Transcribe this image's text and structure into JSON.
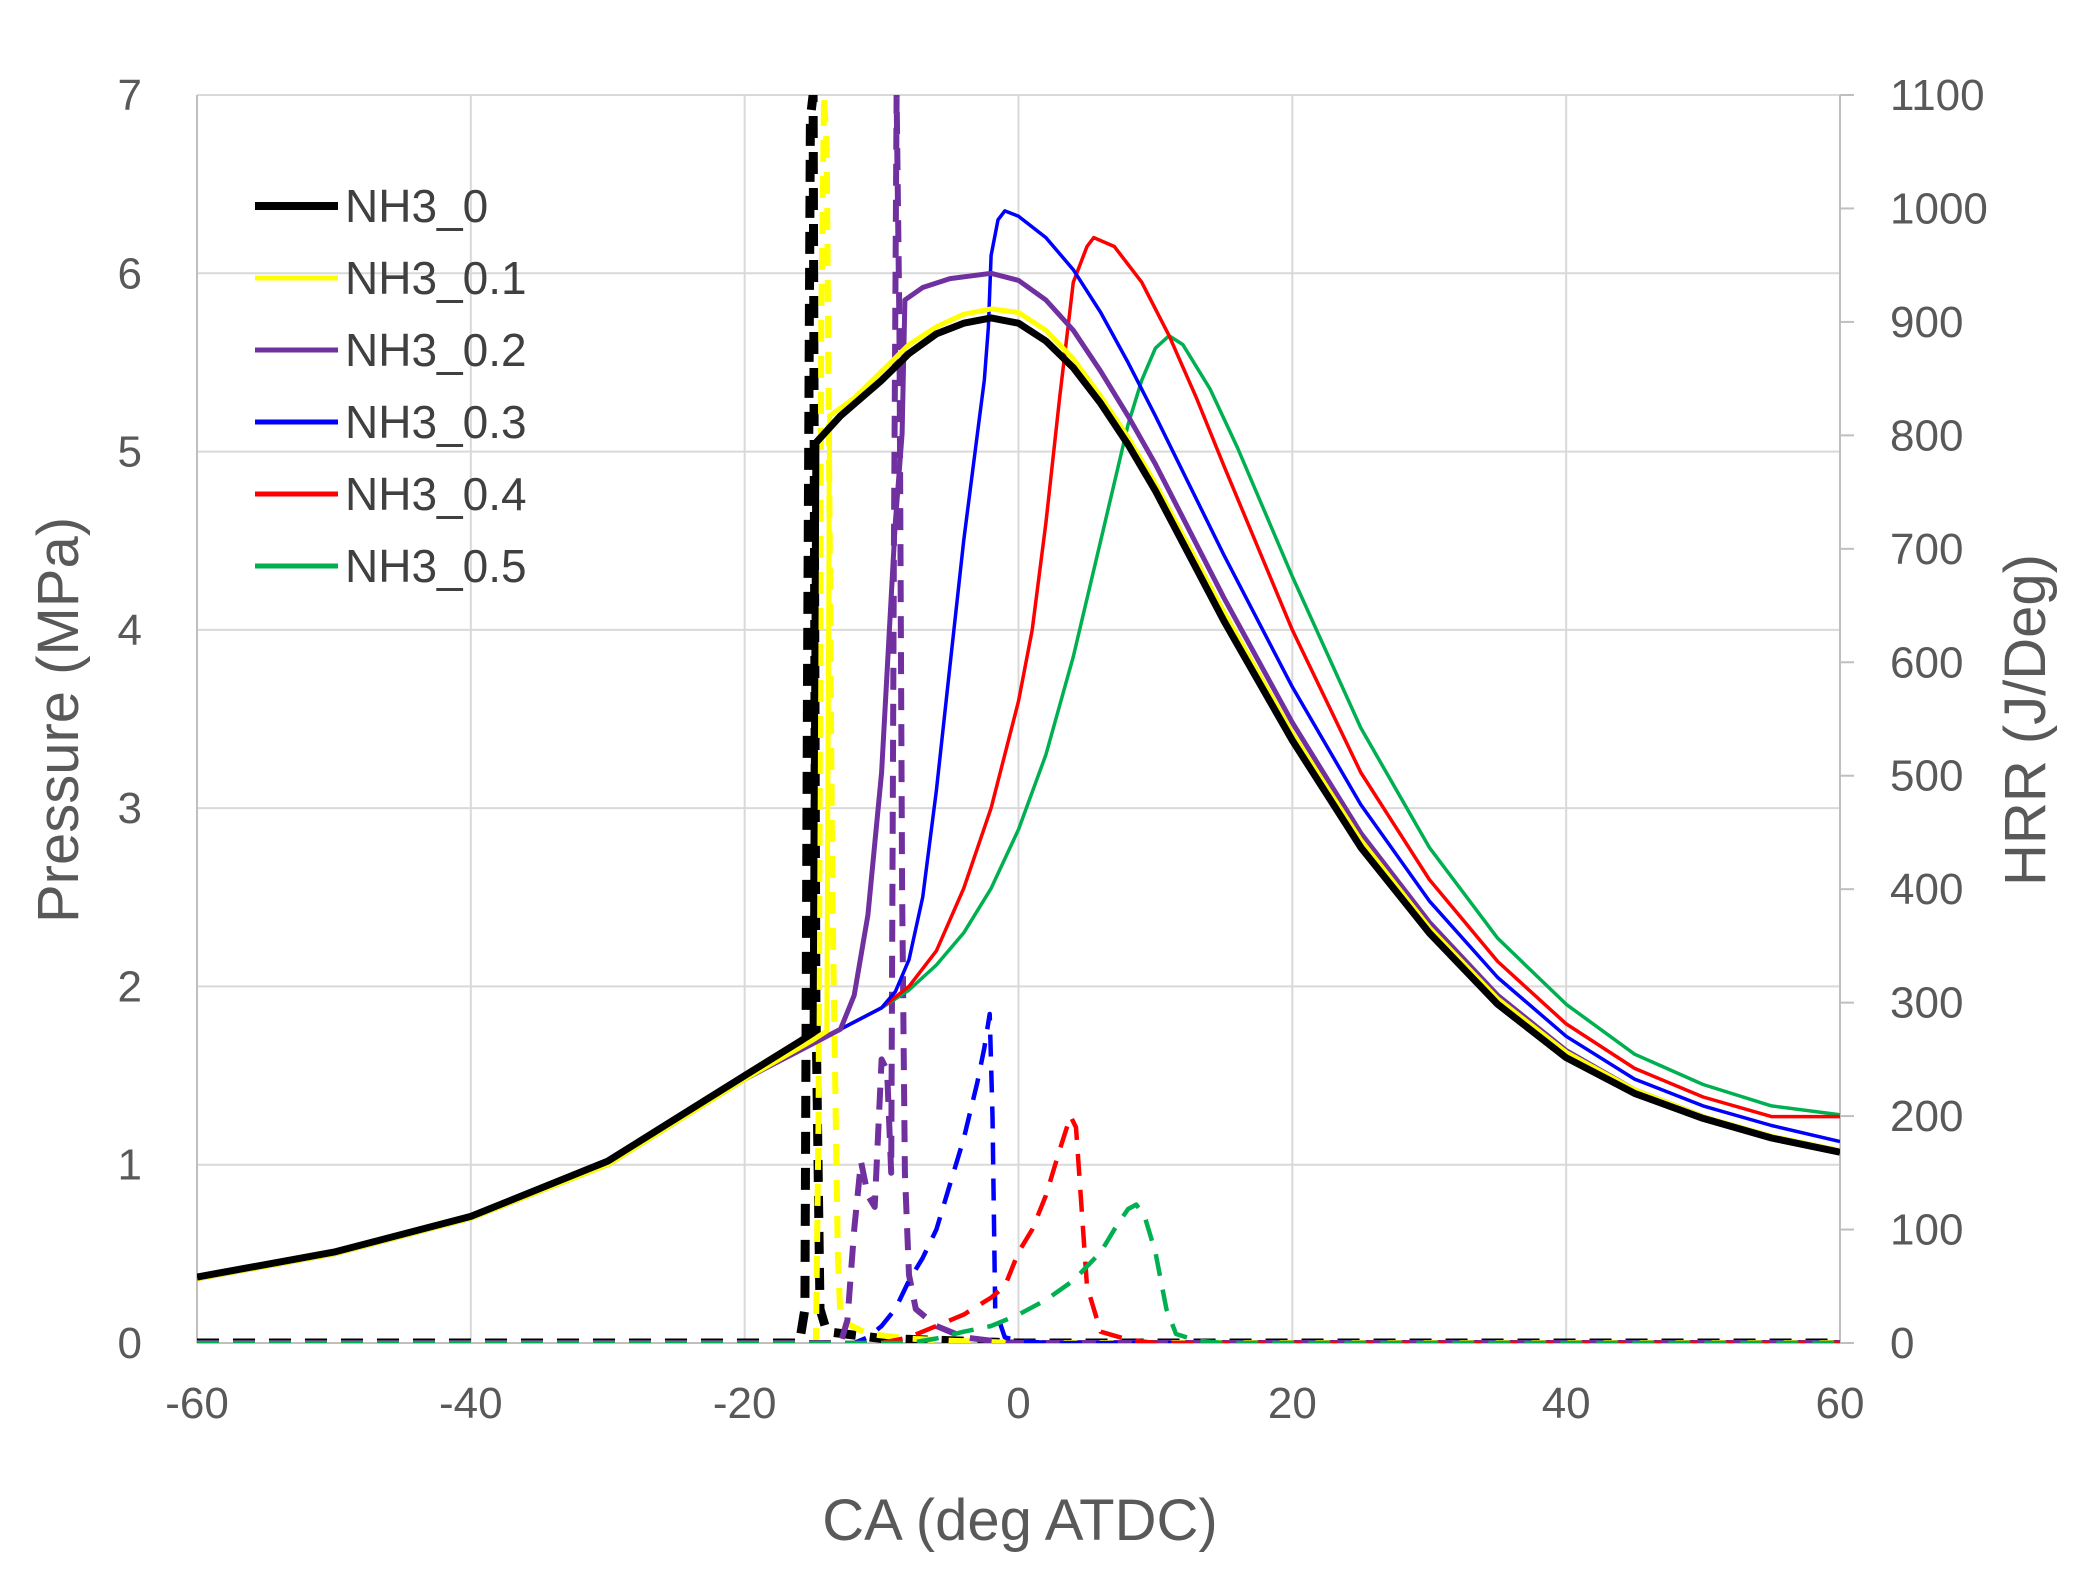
{
  "chart_data": {
    "type": "line",
    "title": "",
    "xlabel": "CA (deg ATDC)",
    "ylabel": "Pressure (MPa)",
    "y2label": "HRR (J/Deg)",
    "xlim": [
      -60,
      60
    ],
    "ylim": [
      0,
      7
    ],
    "y2lim": [
      0,
      1100
    ],
    "xticks": [
      "-60",
      "-40",
      "-20",
      "0",
      "20",
      "40",
      "60"
    ],
    "yticks": [
      "0",
      "1",
      "2",
      "3",
      "4",
      "5",
      "6",
      "7"
    ],
    "y2ticks": [
      "0",
      "100",
      "200",
      "300",
      "400",
      "500",
      "600",
      "700",
      "800",
      "900",
      "1000",
      "1100"
    ],
    "grid": true,
    "legend_position": "top-left",
    "series": [
      {
        "name": "NH3_0",
        "color": "#000000",
        "dashed_hrr": true,
        "pressure": [
          [
            -60,
            0.37
          ],
          [
            -50,
            0.51
          ],
          [
            -40,
            0.71
          ],
          [
            -30,
            1.02
          ],
          [
            -25,
            1.26
          ],
          [
            -20,
            1.5
          ],
          [
            -16,
            1.69
          ],
          [
            -15,
            1.74
          ],
          [
            -14.8,
            5.05
          ],
          [
            -13,
            5.2
          ],
          [
            -10,
            5.4
          ],
          [
            -8,
            5.55
          ],
          [
            -6,
            5.66
          ],
          [
            -4,
            5.72
          ],
          [
            -2,
            5.75
          ],
          [
            0,
            5.72
          ],
          [
            2,
            5.62
          ],
          [
            4,
            5.47
          ],
          [
            6,
            5.27
          ],
          [
            8,
            5.04
          ],
          [
            10,
            4.78
          ],
          [
            15,
            4.05
          ],
          [
            20,
            3.38
          ],
          [
            25,
            2.78
          ],
          [
            30,
            2.3
          ],
          [
            35,
            1.9
          ],
          [
            40,
            1.6
          ],
          [
            45,
            1.4
          ],
          [
            50,
            1.26
          ],
          [
            55,
            1.15
          ],
          [
            60,
            1.07
          ]
        ],
        "hrr": [
          [
            -60,
            0
          ],
          [
            -16,
            0
          ],
          [
            -15.6,
            30
          ],
          [
            -15.4,
            600
          ],
          [
            -15.2,
            1080
          ],
          [
            -15.0,
            1100
          ],
          [
            -14.8,
            300
          ],
          [
            -14.5,
            30
          ],
          [
            -14,
            10
          ],
          [
            -10,
            4
          ],
          [
            -5,
            2
          ],
          [
            0,
            0
          ],
          [
            60,
            0
          ]
        ]
      },
      {
        "name": "NH3_0.1",
        "color": "#ffff00",
        "dashed_hrr": true,
        "pressure": [
          [
            -60,
            0.36
          ],
          [
            -50,
            0.5
          ],
          [
            -40,
            0.7
          ],
          [
            -30,
            1.0
          ],
          [
            -25,
            1.24
          ],
          [
            -20,
            1.48
          ],
          [
            -15,
            1.7
          ],
          [
            -14,
            1.75
          ],
          [
            -13.8,
            5.2
          ],
          [
            -12,
            5.3
          ],
          [
            -10,
            5.45
          ],
          [
            -8,
            5.6
          ],
          [
            -6,
            5.7
          ],
          [
            -4,
            5.77
          ],
          [
            -2,
            5.8
          ],
          [
            0,
            5.78
          ],
          [
            2,
            5.68
          ],
          [
            4,
            5.52
          ],
          [
            6,
            5.31
          ],
          [
            8,
            5.08
          ],
          [
            10,
            4.82
          ],
          [
            15,
            4.1
          ],
          [
            20,
            3.42
          ],
          [
            25,
            2.82
          ],
          [
            30,
            2.33
          ],
          [
            35,
            1.93
          ],
          [
            40,
            1.63
          ],
          [
            45,
            1.42
          ],
          [
            50,
            1.27
          ],
          [
            55,
            1.16
          ],
          [
            60,
            1.08
          ]
        ],
        "hrr": [
          [
            -60,
            0
          ],
          [
            -14.8,
            0
          ],
          [
            -14.6,
            200
          ],
          [
            -14.4,
            900
          ],
          [
            -14.2,
            1100
          ],
          [
            -14.0,
            1050
          ],
          [
            -13.6,
            400
          ],
          [
            -13.2,
            80
          ],
          [
            -13,
            20
          ],
          [
            -11,
            8
          ],
          [
            -8,
            4
          ],
          [
            -5,
            2
          ],
          [
            0,
            0
          ],
          [
            60,
            0
          ]
        ]
      },
      {
        "name": "NH3_0.2",
        "color": "#7030a0",
        "dashed_hrr": true,
        "pressure": [
          [
            -60,
            0.36
          ],
          [
            -50,
            0.5
          ],
          [
            -40,
            0.7
          ],
          [
            -30,
            1.0
          ],
          [
            -25,
            1.24
          ],
          [
            -20,
            1.48
          ],
          [
            -15,
            1.68
          ],
          [
            -13,
            1.76
          ],
          [
            -12,
            1.95
          ],
          [
            -11,
            2.4
          ],
          [
            -10,
            3.2
          ],
          [
            -9.5,
            3.9
          ],
          [
            -9,
            4.6
          ],
          [
            -8.5,
            5.1
          ],
          [
            -8.3,
            5.85
          ],
          [
            -7,
            5.92
          ],
          [
            -5,
            5.97
          ],
          [
            -2,
            6.0
          ],
          [
            0,
            5.96
          ],
          [
            2,
            5.85
          ],
          [
            4,
            5.68
          ],
          [
            6,
            5.45
          ],
          [
            8,
            5.2
          ],
          [
            10,
            4.93
          ],
          [
            15,
            4.18
          ],
          [
            20,
            3.48
          ],
          [
            25,
            2.86
          ],
          [
            30,
            2.36
          ],
          [
            35,
            1.95
          ],
          [
            40,
            1.64
          ],
          [
            45,
            1.42
          ],
          [
            50,
            1.27
          ],
          [
            55,
            1.15
          ],
          [
            60,
            1.07
          ]
        ],
        "hrr": [
          [
            -60,
            0
          ],
          [
            -13,
            0
          ],
          [
            -12.5,
            20
          ],
          [
            -12,
            100
          ],
          [
            -11.5,
            160
          ],
          [
            -11,
            130
          ],
          [
            -10.5,
            120
          ],
          [
            -10,
            250
          ],
          [
            -9.6,
            240
          ],
          [
            -9.3,
            150
          ],
          [
            -9.1,
            700
          ],
          [
            -8.9,
            1100
          ],
          [
            -8.7,
            900
          ],
          [
            -8.5,
            400
          ],
          [
            -8.3,
            150
          ],
          [
            -8,
            60
          ],
          [
            -7.5,
            30
          ],
          [
            -6,
            15
          ],
          [
            -4,
            5
          ],
          [
            -2,
            2
          ],
          [
            0,
            0
          ],
          [
            60,
            0
          ]
        ]
      },
      {
        "name": "NH3_0.3",
        "color": "#0000ff",
        "dashed_hrr": true,
        "pressure": [
          [
            -60,
            0.36
          ],
          [
            -50,
            0.5
          ],
          [
            -40,
            0.7
          ],
          [
            -30,
            1.0
          ],
          [
            -25,
            1.24
          ],
          [
            -20,
            1.48
          ],
          [
            -15,
            1.68
          ],
          [
            -12,
            1.8
          ],
          [
            -10,
            1.88
          ],
          [
            -9,
            1.97
          ],
          [
            -8,
            2.15
          ],
          [
            -7,
            2.5
          ],
          [
            -6,
            3.1
          ],
          [
            -5,
            3.8
          ],
          [
            -4,
            4.5
          ],
          [
            -3,
            5.1
          ],
          [
            -2.5,
            5.4
          ],
          [
            -2.2,
            5.7
          ],
          [
            -2,
            6.1
          ],
          [
            -1.5,
            6.3
          ],
          [
            -1,
            6.35
          ],
          [
            0,
            6.32
          ],
          [
            2,
            6.2
          ],
          [
            4,
            6.02
          ],
          [
            6,
            5.78
          ],
          [
            8,
            5.5
          ],
          [
            10,
            5.2
          ],
          [
            15,
            4.42
          ],
          [
            20,
            3.68
          ],
          [
            25,
            3.02
          ],
          [
            30,
            2.48
          ],
          [
            35,
            2.05
          ],
          [
            40,
            1.72
          ],
          [
            45,
            1.48
          ],
          [
            50,
            1.33
          ],
          [
            55,
            1.22
          ],
          [
            60,
            1.13
          ]
        ],
        "hrr": [
          [
            -60,
            0
          ],
          [
            -12,
            0
          ],
          [
            -11,
            5
          ],
          [
            -10,
            15
          ],
          [
            -9,
            30
          ],
          [
            -8,
            55
          ],
          [
            -7,
            75
          ],
          [
            -6,
            100
          ],
          [
            -5,
            140
          ],
          [
            -4,
            180
          ],
          [
            -3,
            230
          ],
          [
            -2.5,
            260
          ],
          [
            -2.1,
            290
          ],
          [
            -1.9,
            200
          ],
          [
            -1.7,
            30
          ],
          [
            -1,
            5
          ],
          [
            0,
            2
          ],
          [
            2,
            0
          ],
          [
            60,
            0
          ]
        ]
      },
      {
        "name": "NH3_0.4",
        "color": "#ff0000",
        "dashed_hrr": true,
        "pressure": [
          [
            -60,
            0.36
          ],
          [
            -50,
            0.5
          ],
          [
            -40,
            0.7
          ],
          [
            -30,
            1.0
          ],
          [
            -25,
            1.24
          ],
          [
            -20,
            1.48
          ],
          [
            -15,
            1.68
          ],
          [
            -12,
            1.8
          ],
          [
            -10,
            1.88
          ],
          [
            -8,
            2.0
          ],
          [
            -6,
            2.2
          ],
          [
            -4,
            2.55
          ],
          [
            -2,
            3.0
          ],
          [
            0,
            3.6
          ],
          [
            1,
            4.0
          ],
          [
            2,
            4.6
          ],
          [
            3,
            5.3
          ],
          [
            4,
            5.95
          ],
          [
            5,
            6.15
          ],
          [
            5.5,
            6.2
          ],
          [
            7,
            6.15
          ],
          [
            9,
            5.95
          ],
          [
            11,
            5.65
          ],
          [
            13,
            5.3
          ],
          [
            15,
            4.92
          ],
          [
            20,
            4.0
          ],
          [
            25,
            3.2
          ],
          [
            30,
            2.6
          ],
          [
            35,
            2.14
          ],
          [
            40,
            1.79
          ],
          [
            45,
            1.54
          ],
          [
            50,
            1.38
          ],
          [
            55,
            1.27
          ],
          [
            60,
            1.27
          ]
        ],
        "hrr": [
          [
            -60,
            0
          ],
          [
            -10,
            0
          ],
          [
            -8,
            5
          ],
          [
            -6,
            15
          ],
          [
            -4,
            25
          ],
          [
            -2,
            40
          ],
          [
            -1,
            50
          ],
          [
            0,
            80
          ],
          [
            1,
            100
          ],
          [
            2,
            130
          ],
          [
            3,
            170
          ],
          [
            3.8,
            200
          ],
          [
            4.2,
            190
          ],
          [
            4.6,
            120
          ],
          [
            5,
            50
          ],
          [
            6,
            10
          ],
          [
            8,
            3
          ],
          [
            10,
            0
          ],
          [
            60,
            0
          ]
        ]
      },
      {
        "name": "NH3_0.5",
        "color": "#00b050",
        "dashed_hrr": true,
        "pressure": [
          [
            -60,
            0.36
          ],
          [
            -50,
            0.5
          ],
          [
            -40,
            0.7
          ],
          [
            -30,
            1.0
          ],
          [
            -25,
            1.24
          ],
          [
            -20,
            1.48
          ],
          [
            -15,
            1.68
          ],
          [
            -12,
            1.8
          ],
          [
            -10,
            1.88
          ],
          [
            -8,
            1.98
          ],
          [
            -6,
            2.12
          ],
          [
            -4,
            2.3
          ],
          [
            -2,
            2.55
          ],
          [
            0,
            2.88
          ],
          [
            2,
            3.3
          ],
          [
            4,
            3.85
          ],
          [
            6,
            4.5
          ],
          [
            8,
            5.15
          ],
          [
            9,
            5.4
          ],
          [
            10,
            5.58
          ],
          [
            11,
            5.65
          ],
          [
            12,
            5.6
          ],
          [
            14,
            5.35
          ],
          [
            16,
            5.02
          ],
          [
            20,
            4.3
          ],
          [
            25,
            3.45
          ],
          [
            30,
            2.78
          ],
          [
            35,
            2.27
          ],
          [
            40,
            1.9
          ],
          [
            45,
            1.62
          ],
          [
            50,
            1.45
          ],
          [
            55,
            1.33
          ],
          [
            60,
            1.28
          ]
        ],
        "hrr": [
          [
            -60,
            0
          ],
          [
            -8,
            0
          ],
          [
            -6,
            4
          ],
          [
            -4,
            10
          ],
          [
            -2,
            15
          ],
          [
            0,
            25
          ],
          [
            2,
            38
          ],
          [
            4,
            55
          ],
          [
            6,
            80
          ],
          [
            7,
            100
          ],
          [
            8,
            118
          ],
          [
            8.6,
            122
          ],
          [
            9.2,
            112
          ],
          [
            10,
            80
          ],
          [
            10.8,
            30
          ],
          [
            11.5,
            8
          ],
          [
            13,
            2
          ],
          [
            15,
            0
          ],
          [
            60,
            0
          ]
        ]
      }
    ]
  }
}
